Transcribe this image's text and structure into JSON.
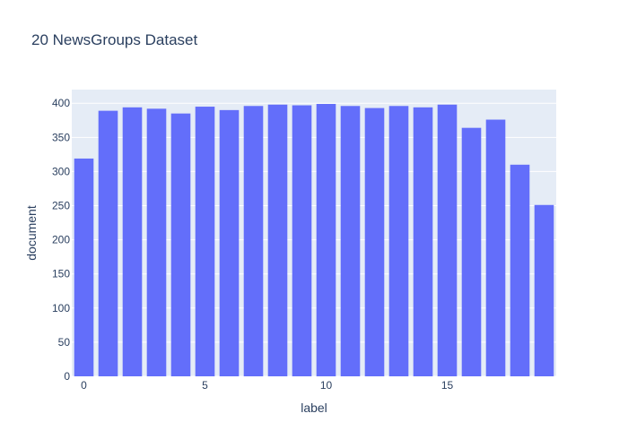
{
  "chart_data": {
    "type": "bar",
    "title": "20 NewsGroups Dataset",
    "xlabel": "label",
    "ylabel": "document",
    "x": [
      0,
      1,
      2,
      3,
      4,
      5,
      6,
      7,
      8,
      9,
      10,
      11,
      12,
      13,
      14,
      15,
      16,
      17,
      18,
      19
    ],
    "values": [
      319,
      389,
      394,
      392,
      385,
      395,
      390,
      396,
      398,
      397,
      399,
      396,
      393,
      396,
      394,
      398,
      364,
      376,
      310,
      251
    ],
    "xlim": [
      -0.5,
      19.5
    ],
    "ylim": [
      0,
      420
    ],
    "x_ticks": [
      0,
      5,
      10,
      15
    ],
    "y_ticks": [
      0,
      50,
      100,
      150,
      200,
      250,
      300,
      350,
      400
    ],
    "grid": true,
    "legend": "none",
    "colors": {
      "bar": "#636efa",
      "plot_bg": "#e5ecf6",
      "grid": "#ffffff",
      "text": "#2a3f5f"
    }
  }
}
